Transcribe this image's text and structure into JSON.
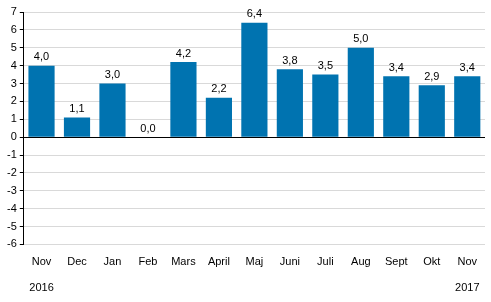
{
  "chart_data": {
    "type": "bar",
    "categories": [
      [
        "Nov",
        "",
        "2016"
      ],
      "Dec",
      "Jan",
      "Feb",
      "Mars",
      "April",
      "Maj",
      "Juni",
      "Juli",
      "Aug",
      "Sept",
      "Okt",
      [
        "Nov",
        "",
        "2017"
      ]
    ],
    "values": [
      4.0,
      1.1,
      3.0,
      0.0,
      4.2,
      2.2,
      6.4,
      3.8,
      3.5,
      5.0,
      3.4,
      2.9,
      3.4
    ],
    "value_labels": [
      "4,0",
      "1,1",
      "3,0",
      "0,0",
      "4,2",
      "2,2",
      "6,4",
      "3,8",
      "3,5",
      "5,0",
      "3,4",
      "2,9",
      "3,4"
    ],
    "color": "#0073b0",
    "ylim": [
      -6,
      7
    ],
    "yticks": [
      -6,
      -5,
      -4,
      -3,
      -2,
      -1,
      0,
      1,
      2,
      3,
      4,
      5,
      6,
      7
    ],
    "grid": true,
    "data_labels": true
  }
}
